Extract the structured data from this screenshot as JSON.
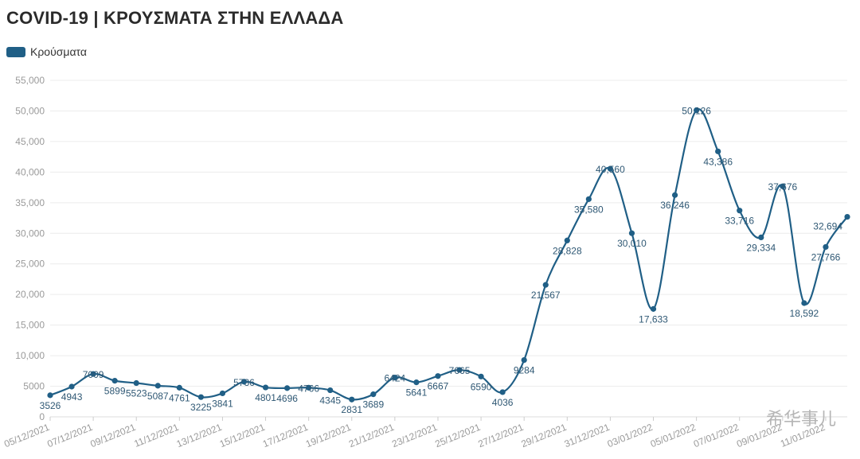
{
  "chart_data": {
    "type": "line",
    "title": "COVID-19 | ΚΡΟΥΣΜΑΤΑ ΣΤΗΝ ΕΛΛΑΔΑ",
    "series": [
      {
        "name": "Κρούσματα",
        "color": "#205f86",
        "values": [
          3526,
          4943,
          7009,
          5899,
          5523,
          5087,
          4761,
          3225,
          3841,
          5736,
          4801,
          4696,
          4766,
          4345,
          2831,
          3689,
          6424,
          5641,
          6667,
          7665,
          6590,
          4036,
          9284,
          21567,
          28828,
          35580,
          40560,
          30010,
          17633,
          36246,
          50126,
          43386,
          33716,
          29334,
          37676,
          18592,
          27766,
          32694
        ]
      }
    ],
    "data_labels": [
      "3526",
      "4943",
      "7009",
      "5899",
      "5523",
      "5087",
      "4761",
      "3225",
      "3841",
      "5736",
      "4801",
      "4696",
      "4766",
      "4345",
      "2831",
      "3689",
      "6424",
      "5641",
      "6667",
      "7665",
      "6590",
      "4036",
      "9284",
      "21,567",
      "28,828",
      "35,580",
      "40,560",
      "30,010",
      "17,633",
      "36,246",
      "50,126",
      "43,386",
      "33,716",
      "29,334",
      "37,676",
      "18,592",
      "27,766",
      "32,694"
    ],
    "x_tick_labels": [
      "05/12/2021",
      "07/12/2021",
      "09/12/2021",
      "11/12/2021",
      "13/12/2021",
      "15/12/2021",
      "17/12/2021",
      "19/12/2021",
      "21/12/2021",
      "23/12/2021",
      "25/12/2021",
      "27/12/2021",
      "29/12/2021",
      "31/12/2021",
      "03/01/2022",
      "05/01/2022",
      "07/01/2022",
      "09/01/2022",
      "11/01/2022"
    ],
    "y_ticks": [
      0,
      5000,
      10000,
      15000,
      20000,
      25000,
      30000,
      35000,
      40000,
      45000,
      50000,
      55000
    ],
    "y_tick_labels": [
      "0",
      "5000",
      "10,000",
      "15,000",
      "20,000",
      "25,000",
      "30,000",
      "35,000",
      "40,000",
      "45,000",
      "50,000",
      "55,000"
    ],
    "ylim": [
      0,
      55000
    ],
    "grid": true,
    "legend": "top-left"
  },
  "watermark": "希华事儿"
}
